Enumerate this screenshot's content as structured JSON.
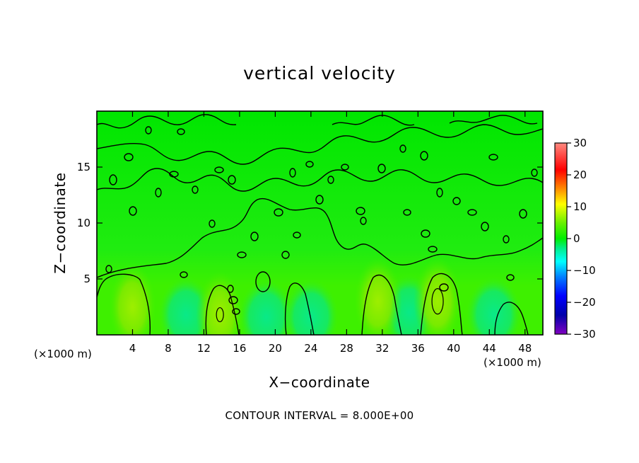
{
  "chart_data": {
    "type": "heatmap",
    "title": "vertical velocity",
    "xlabel": "X−coordinate",
    "ylabel": "Z−coordinate",
    "x_unit": "(×1000 m)",
    "y_unit": "(×1000 m)",
    "xlim": [
      0,
      50
    ],
    "ylim": [
      0,
      20
    ],
    "x_ticks": [
      4,
      8,
      12,
      16,
      20,
      24,
      28,
      32,
      36,
      40,
      44,
      48
    ],
    "x_tick_labels": [
      "4",
      "8",
      "12",
      "16",
      "20",
      "24",
      "28",
      "32",
      "36",
      "40",
      "44",
      "48"
    ],
    "y_ticks": [
      5,
      10,
      15
    ],
    "y_tick_labels": [
      "5",
      "10",
      "15"
    ],
    "colorbar": {
      "range": [
        -30,
        30
      ],
      "ticks": [
        30,
        20,
        10,
        0,
        -10,
        -20,
        -30
      ],
      "tick_labels": [
        "30",
        "20",
        "10",
        "0",
        "−10",
        "−20",
        "−30"
      ],
      "colors": [
        "#ff8a80",
        "#ff0000",
        "#ff8c00",
        "#ffff00",
        "#00ee00",
        "#00ee88",
        "#00ffff",
        "#0080ff",
        "#0000ff",
        "#0000aa",
        "#8000c0"
      ]
    },
    "contour_interval": 8,
    "annotation": "CONTOUR INTERVAL = 8.000E+00",
    "updraft_cores": [
      {
        "x": 4,
        "z": 2.5,
        "w": 6
      },
      {
        "x": 13.8,
        "z": 1.8,
        "w": 8
      },
      {
        "x": 31.5,
        "z": 3,
        "w": 6
      },
      {
        "x": 38.2,
        "z": 3,
        "w": 9
      }
    ]
  }
}
